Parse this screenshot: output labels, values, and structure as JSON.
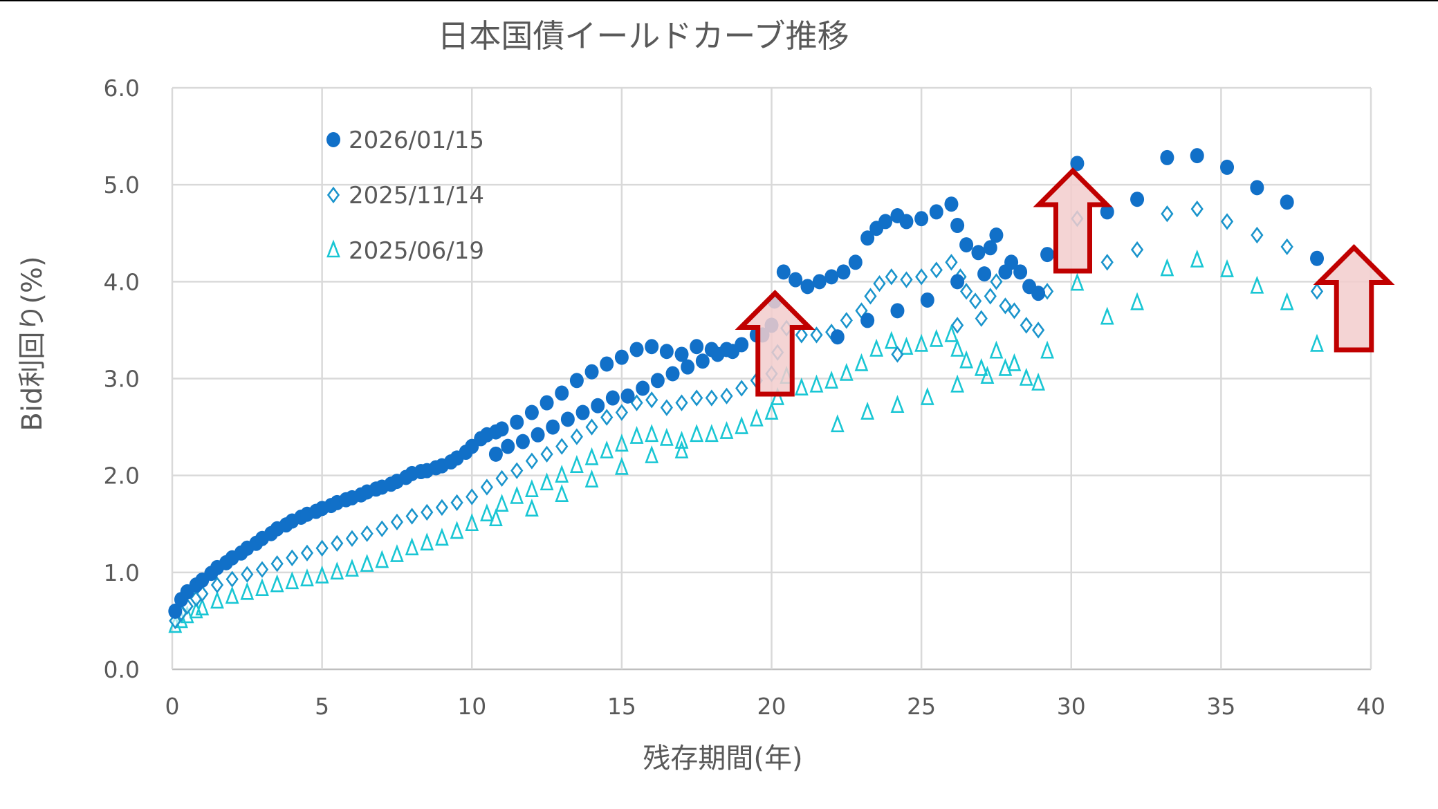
{
  "chart_data": {
    "type": "scatter",
    "title": "日本国債イールドカーブ推移",
    "xlabel": "残存期間(年)",
    "ylabel": "Bid利回り(%)",
    "xlim": [
      0,
      40
    ],
    "ylim": [
      0,
      6
    ],
    "x_ticks": [
      "0",
      "5",
      "10",
      "15",
      "20",
      "25",
      "30",
      "35",
      "40"
    ],
    "y_ticks": [
      "0.0",
      "1.0",
      "2.0",
      "3.0",
      "4.0",
      "5.0",
      "6.0"
    ],
    "grid": true,
    "legend_position": "top-left",
    "series": [
      {
        "name": "2026/01/15",
        "marker": "circle",
        "color": "#1170c8",
        "points": [
          [
            0.1,
            0.6
          ],
          [
            0.3,
            0.72
          ],
          [
            0.5,
            0.8
          ],
          [
            0.8,
            0.87
          ],
          [
            1,
            0.92
          ],
          [
            1.3,
            0.99
          ],
          [
            1.5,
            1.05
          ],
          [
            1.8,
            1.1
          ],
          [
            2,
            1.15
          ],
          [
            2.3,
            1.2
          ],
          [
            2.5,
            1.25
          ],
          [
            2.8,
            1.3
          ],
          [
            3,
            1.35
          ],
          [
            3.3,
            1.4
          ],
          [
            3.5,
            1.45
          ],
          [
            3.8,
            1.49
          ],
          [
            4,
            1.53
          ],
          [
            4.3,
            1.57
          ],
          [
            4.5,
            1.6
          ],
          [
            4.8,
            1.63
          ],
          [
            5,
            1.66
          ],
          [
            5.3,
            1.69
          ],
          [
            5.5,
            1.72
          ],
          [
            5.8,
            1.75
          ],
          [
            6,
            1.77
          ],
          [
            6.3,
            1.8
          ],
          [
            6.5,
            1.83
          ],
          [
            6.8,
            1.86
          ],
          [
            7,
            1.88
          ],
          [
            7.3,
            1.91
          ],
          [
            7.5,
            1.94
          ],
          [
            7.8,
            1.98
          ],
          [
            8,
            2.02
          ],
          [
            8.3,
            2.04
          ],
          [
            8.5,
            2.05
          ],
          [
            8.8,
            2.08
          ],
          [
            9,
            2.1
          ],
          [
            9.3,
            2.14
          ],
          [
            9.5,
            2.18
          ],
          [
            9.8,
            2.24
          ],
          [
            10,
            2.3
          ],
          [
            10.3,
            2.38
          ],
          [
            10.5,
            2.42
          ],
          [
            10.8,
            2.45
          ],
          [
            11,
            2.48
          ],
          [
            11.5,
            2.55
          ],
          [
            12,
            2.65
          ],
          [
            12.5,
            2.75
          ],
          [
            13,
            2.85
          ],
          [
            13.5,
            2.98
          ],
          [
            14,
            3.07
          ],
          [
            14.5,
            3.15
          ],
          [
            15,
            3.22
          ],
          [
            15.5,
            3.3
          ],
          [
            16,
            3.33
          ],
          [
            16.5,
            3.28
          ],
          [
            17,
            3.25
          ],
          [
            17.5,
            3.33
          ],
          [
            18,
            3.3
          ],
          [
            18.5,
            3.3
          ],
          [
            19,
            3.35
          ],
          [
            19.5,
            3.45
          ],
          [
            20,
            3.55
          ],
          [
            20.1,
            3.8
          ],
          [
            20.4,
            4.1
          ],
          [
            20.8,
            4.02
          ],
          [
            21.2,
            3.95
          ],
          [
            21.6,
            4.0
          ],
          [
            22,
            4.05
          ],
          [
            22.4,
            4.1
          ],
          [
            22.8,
            4.2
          ],
          [
            23.2,
            4.45
          ],
          [
            23.5,
            4.55
          ],
          [
            23.8,
            4.62
          ],
          [
            24.2,
            4.68
          ],
          [
            24.5,
            4.62
          ],
          [
            25,
            4.65
          ],
          [
            25.5,
            4.72
          ],
          [
            26,
            4.8
          ],
          [
            26.2,
            4.58
          ],
          [
            26.5,
            4.38
          ],
          [
            26.9,
            4.3
          ],
          [
            27.1,
            4.08
          ],
          [
            27.3,
            4.35
          ],
          [
            27.5,
            4.48
          ],
          [
            27.8,
            4.1
          ],
          [
            28,
            4.2
          ],
          [
            28.3,
            4.1
          ],
          [
            28.6,
            3.95
          ],
          [
            28.9,
            3.88
          ],
          [
            29.2,
            4.28
          ],
          [
            30.2,
            5.22
          ],
          [
            31.2,
            4.72
          ],
          [
            32.2,
            4.85
          ],
          [
            33.2,
            5.28
          ],
          [
            34.2,
            5.3
          ],
          [
            35.2,
            5.18
          ],
          [
            36.2,
            4.97
          ],
          [
            37.2,
            4.82
          ],
          [
            38.2,
            4.24
          ],
          [
            10.8,
            2.22
          ],
          [
            11.2,
            2.3
          ],
          [
            11.7,
            2.35
          ],
          [
            12.2,
            2.42
          ],
          [
            12.7,
            2.5
          ],
          [
            13.2,
            2.58
          ],
          [
            13.7,
            2.65
          ],
          [
            14.2,
            2.72
          ],
          [
            14.7,
            2.8
          ],
          [
            15.2,
            2.82
          ],
          [
            15.7,
            2.9
          ],
          [
            16.2,
            2.98
          ],
          [
            16.7,
            3.05
          ],
          [
            17.2,
            3.12
          ],
          [
            17.7,
            3.18
          ],
          [
            18.2,
            3.25
          ],
          [
            18.7,
            3.28
          ],
          [
            19.7,
            3.45
          ],
          [
            22.2,
            3.43
          ],
          [
            23.2,
            3.6
          ],
          [
            24.2,
            3.7
          ],
          [
            25.2,
            3.81
          ],
          [
            26.2,
            4.0
          ]
        ]
      },
      {
        "name": "2025/11/14",
        "marker": "diamond",
        "color": "#1a94cc",
        "points": [
          [
            0.1,
            0.5
          ],
          [
            0.3,
            0.58
          ],
          [
            0.5,
            0.65
          ],
          [
            0.8,
            0.73
          ],
          [
            1,
            0.78
          ],
          [
            1.5,
            0.87
          ],
          [
            2,
            0.93
          ],
          [
            2.5,
            0.98
          ],
          [
            3,
            1.03
          ],
          [
            3.5,
            1.09
          ],
          [
            4,
            1.15
          ],
          [
            4.5,
            1.2
          ],
          [
            5,
            1.25
          ],
          [
            5.5,
            1.3
          ],
          [
            6,
            1.35
          ],
          [
            6.5,
            1.4
          ],
          [
            7,
            1.45
          ],
          [
            7.5,
            1.52
          ],
          [
            8,
            1.58
          ],
          [
            8.5,
            1.62
          ],
          [
            9,
            1.67
          ],
          [
            9.5,
            1.72
          ],
          [
            10,
            1.78
          ],
          [
            10.5,
            1.88
          ],
          [
            11,
            1.97
          ],
          [
            11.5,
            2.05
          ],
          [
            12,
            2.15
          ],
          [
            12.5,
            2.22
          ],
          [
            13,
            2.3
          ],
          [
            13.5,
            2.4
          ],
          [
            14,
            2.5
          ],
          [
            14.5,
            2.6
          ],
          [
            15,
            2.65
          ],
          [
            15.5,
            2.75
          ],
          [
            16,
            2.78
          ],
          [
            16.5,
            2.7
          ],
          [
            17,
            2.75
          ],
          [
            17.5,
            2.8
          ],
          [
            18,
            2.8
          ],
          [
            18.5,
            2.82
          ],
          [
            19,
            2.9
          ],
          [
            19.5,
            2.98
          ],
          [
            20,
            3.05
          ],
          [
            20.2,
            3.27
          ],
          [
            20.5,
            3.52
          ],
          [
            21,
            3.45
          ],
          [
            21.5,
            3.45
          ],
          [
            22,
            3.48
          ],
          [
            22.5,
            3.6
          ],
          [
            23,
            3.7
          ],
          [
            23.3,
            3.85
          ],
          [
            23.6,
            3.98
          ],
          [
            24,
            4.05
          ],
          [
            24.5,
            4.02
          ],
          [
            25,
            4.05
          ],
          [
            25.5,
            4.12
          ],
          [
            26,
            4.2
          ],
          [
            26.3,
            4.05
          ],
          [
            26.5,
            3.9
          ],
          [
            26.8,
            3.8
          ],
          [
            27,
            3.62
          ],
          [
            27.3,
            3.85
          ],
          [
            27.5,
            4.0
          ],
          [
            27.8,
            3.75
          ],
          [
            28.1,
            3.7
          ],
          [
            28.5,
            3.55
          ],
          [
            28.9,
            3.5
          ],
          [
            29.2,
            3.9
          ],
          [
            30.2,
            4.65
          ],
          [
            31.2,
            4.2
          ],
          [
            32.2,
            4.33
          ],
          [
            33.2,
            4.7
          ],
          [
            34.2,
            4.75
          ],
          [
            35.2,
            4.62
          ],
          [
            36.2,
            4.48
          ],
          [
            37.2,
            4.36
          ],
          [
            38.2,
            3.9
          ],
          [
            24.2,
            3.25
          ],
          [
            26.2,
            3.55
          ]
        ]
      },
      {
        "name": "2025/06/19",
        "marker": "triangle",
        "color": "#19c6d4",
        "points": [
          [
            0.1,
            0.45
          ],
          [
            0.3,
            0.5
          ],
          [
            0.5,
            0.55
          ],
          [
            0.8,
            0.6
          ],
          [
            1,
            0.63
          ],
          [
            1.5,
            0.7
          ],
          [
            2,
            0.75
          ],
          [
            2.5,
            0.79
          ],
          [
            3,
            0.83
          ],
          [
            3.5,
            0.87
          ],
          [
            4,
            0.9
          ],
          [
            4.5,
            0.93
          ],
          [
            5,
            0.96
          ],
          [
            5.5,
            1.0
          ],
          [
            6,
            1.03
          ],
          [
            6.5,
            1.08
          ],
          [
            7,
            1.12
          ],
          [
            7.5,
            1.18
          ],
          [
            8,
            1.25
          ],
          [
            8.5,
            1.3
          ],
          [
            9,
            1.35
          ],
          [
            9.5,
            1.42
          ],
          [
            10,
            1.5
          ],
          [
            10.5,
            1.6
          ],
          [
            11,
            1.7
          ],
          [
            11.5,
            1.78
          ],
          [
            12,
            1.85
          ],
          [
            12.5,
            1.92
          ],
          [
            13,
            2.0
          ],
          [
            13.5,
            2.1
          ],
          [
            14,
            2.18
          ],
          [
            14.5,
            2.25
          ],
          [
            15,
            2.32
          ],
          [
            15.5,
            2.4
          ],
          [
            16,
            2.42
          ],
          [
            16.5,
            2.38
          ],
          [
            17,
            2.35
          ],
          [
            17.5,
            2.42
          ],
          [
            18,
            2.42
          ],
          [
            18.5,
            2.45
          ],
          [
            19,
            2.5
          ],
          [
            19.5,
            2.58
          ],
          [
            20,
            2.65
          ],
          [
            20.2,
            2.8
          ],
          [
            20.5,
            3.02
          ],
          [
            21,
            2.9
          ],
          [
            21.5,
            2.93
          ],
          [
            22,
            2.97
          ],
          [
            22.5,
            3.05
          ],
          [
            23,
            3.15
          ],
          [
            23.5,
            3.3
          ],
          [
            24,
            3.38
          ],
          [
            24.5,
            3.32
          ],
          [
            25,
            3.35
          ],
          [
            25.5,
            3.4
          ],
          [
            26,
            3.45
          ],
          [
            26.2,
            3.3
          ],
          [
            26.5,
            3.18
          ],
          [
            27,
            3.1
          ],
          [
            27.2,
            3.02
          ],
          [
            27.5,
            3.28
          ],
          [
            27.8,
            3.1
          ],
          [
            28.1,
            3.15
          ],
          [
            28.5,
            3.0
          ],
          [
            28.9,
            2.95
          ],
          [
            29.2,
            3.28
          ],
          [
            30.2,
            3.98
          ],
          [
            31.2,
            3.63
          ],
          [
            32.2,
            3.78
          ],
          [
            33.2,
            4.13
          ],
          [
            34.2,
            4.22
          ],
          [
            35.2,
            4.12
          ],
          [
            36.2,
            3.95
          ],
          [
            37.2,
            3.78
          ],
          [
            38.2,
            3.35
          ],
          [
            10.8,
            1.55
          ],
          [
            12,
            1.65
          ],
          [
            13,
            1.8
          ],
          [
            14,
            1.95
          ],
          [
            15,
            2.08
          ],
          [
            16,
            2.2
          ],
          [
            17,
            2.25
          ],
          [
            22.2,
            2.52
          ],
          [
            23.2,
            2.65
          ],
          [
            24.2,
            2.72
          ],
          [
            25.2,
            2.8
          ],
          [
            26.2,
            2.93
          ]
        ]
      }
    ],
    "annotations": [
      {
        "type": "up-arrow",
        "at_x": 20,
        "color": "#c00000",
        "fill": "#f2cccc"
      },
      {
        "type": "up-arrow",
        "at_x": 30,
        "color": "#c00000",
        "fill": "#f2cccc"
      },
      {
        "type": "up-arrow",
        "at_x": 40,
        "color": "#c00000",
        "fill": "#f2cccc"
      }
    ]
  }
}
